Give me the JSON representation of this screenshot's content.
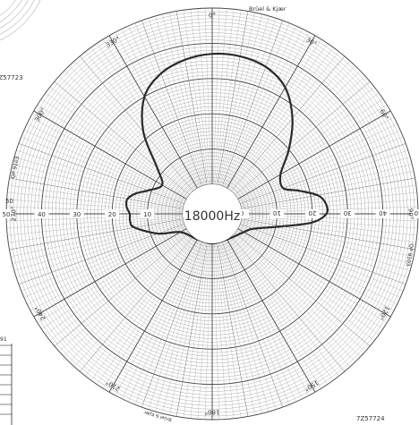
{
  "chart_data": {
    "type": "polar",
    "center_label": "18000Hz",
    "brand": "Brüel & Kjær",
    "brand_bottom": "Brüel & Kjær",
    "serial_bottom_right": "7Z57724",
    "serial_top_left": "7Z57723",
    "form_code_left": "QP 9103",
    "form_code_right": "QP 9103",
    "corner_number": "91",
    "corner_upper_left_text": "50",
    "angle_labels": [
      {
        "angle": 0,
        "text": "0°"
      },
      {
        "angle": 30,
        "text": "30°"
      },
      {
        "angle": 60,
        "text": "60°"
      },
      {
        "angle": 90,
        "text": "90°"
      },
      {
        "angle": 120,
        "text": "120°"
      },
      {
        "angle": 150,
        "text": "150°"
      },
      {
        "angle": 180,
        "text": "180°"
      },
      {
        "angle": 210,
        "text": "210°"
      },
      {
        "angle": 240,
        "text": "240°"
      },
      {
        "angle": 270,
        "text": "270°"
      },
      {
        "angle": 300,
        "text": "300°"
      },
      {
        "angle": 330,
        "text": "330°"
      }
    ],
    "radial_labels_left": [
      "10",
      "20",
      "30",
      "40",
      "50"
    ],
    "radial_labels_right": [
      "0",
      "10",
      "20",
      "30",
      "40",
      "50"
    ],
    "radial_range_db": [
      0,
      50
    ],
    "series": [
      {
        "theta_deg": [
          0,
          10,
          20,
          30,
          40,
          50,
          60,
          70,
          75,
          80,
          85,
          90,
          95,
          100,
          110,
          120,
          150,
          180,
          210,
          240,
          250,
          260,
          265,
          270,
          275,
          280,
          285,
          290,
          300,
          310,
          320,
          330,
          340,
          350
        ],
        "r_db": [
          37,
          37,
          36,
          33,
          27,
          20,
          14,
          13,
          17,
          22,
          24,
          24,
          20,
          12,
          4,
          2,
          0,
          0,
          0,
          2,
          8,
          14,
          15,
          15,
          16,
          16,
          14,
          11,
          8,
          12,
          22,
          30,
          34,
          36
        ]
      }
    ]
  }
}
